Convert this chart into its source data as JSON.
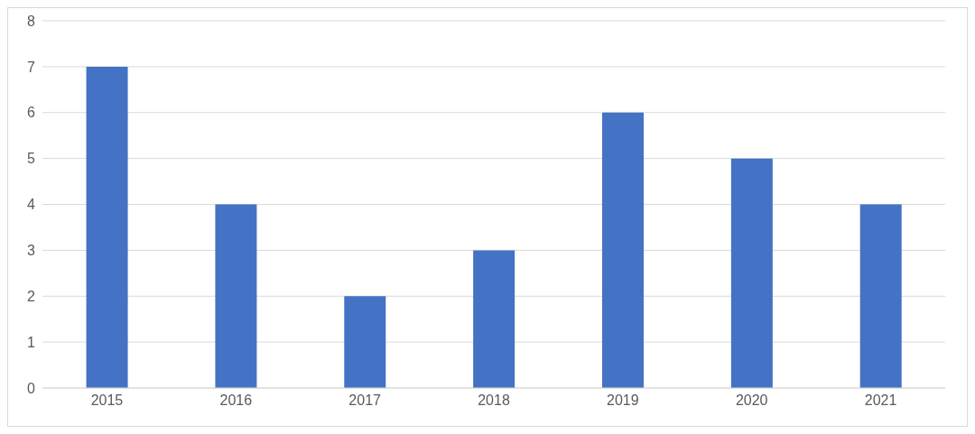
{
  "chart_data": {
    "type": "bar",
    "categories": [
      "2015",
      "2016",
      "2017",
      "2018",
      "2019",
      "2020",
      "2021"
    ],
    "values": [
      7,
      4,
      2,
      3,
      6,
      5,
      4
    ],
    "color": "#4472c4",
    "ylim": [
      0,
      8
    ],
    "yticks": [
      0,
      1,
      2,
      3,
      4,
      5,
      6,
      7,
      8
    ],
    "grid": "y"
  }
}
